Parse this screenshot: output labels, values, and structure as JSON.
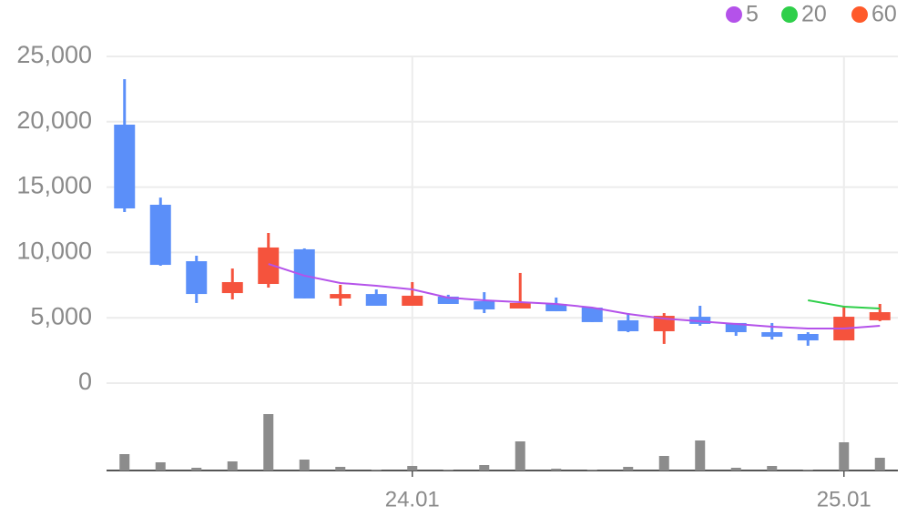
{
  "chart_data": {
    "type": "candlestick",
    "categories": [
      null,
      null,
      null,
      null,
      null,
      null,
      null,
      null,
      "24.01",
      null,
      null,
      null,
      null,
      null,
      null,
      null,
      null,
      null,
      null,
      null,
      "25.01",
      null
    ],
    "open": [
      19780,
      13650,
      9330,
      6890,
      7590,
      10240,
      6480,
      6820,
      5920,
      6620,
      6270,
      5710,
      6060,
      5780,
      4810,
      3970,
      5080,
      4600,
      3900,
      3760,
      3270,
      4810
    ],
    "close": [
      13370,
      9050,
      6820,
      7730,
      10380,
      6480,
      6820,
      5920,
      6690,
      6060,
      5640,
      6130,
      5500,
      4670,
      3970,
      5150,
      4530,
      3900,
      3550,
      3270,
      5080,
      5430
    ],
    "high": [
      23260,
      14200,
      9750,
      8770,
      11490,
      10310,
      7520,
      7170,
      7730,
      6760,
      6960,
      8430,
      6550,
      5780,
      5360,
      5360,
      5920,
      4600,
      4600,
      3900,
      5920,
      6060
    ],
    "low": [
      13090,
      8980,
      6130,
      6410,
      7310,
      6480,
      5920,
      5920,
      5920,
      6060,
      5360,
      5710,
      5500,
      4670,
      3900,
      3000,
      4390,
      3620,
      3340,
      2860,
      3270,
      4740
    ],
    "volume": [
      18,
      9,
      3,
      10,
      62,
      12,
      4,
      1,
      5,
      1,
      6,
      32,
      2,
      1,
      4,
      16,
      33,
      3,
      5,
      1,
      31,
      14
    ],
    "up_color": "#f5533d",
    "down_color": "#5b8ff9",
    "volume_color": "#8c8c8c",
    "series": [
      {
        "name": "5",
        "color": "#b452ea",
        "values": [
          null,
          null,
          null,
          null,
          9120,
          8220,
          7660,
          7450,
          7170,
          6540,
          6340,
          6200,
          6060,
          5780,
          5290,
          4940,
          4730,
          4530,
          4320,
          4180,
          4180,
          4390
        ]
      },
      {
        "name": "20",
        "color": "#2fcf4a",
        "values": [
          null,
          null,
          null,
          null,
          null,
          null,
          null,
          null,
          null,
          null,
          null,
          null,
          null,
          null,
          null,
          null,
          null,
          null,
          null,
          6340,
          5850,
          5710
        ]
      },
      {
        "name": "60",
        "color": "#ff5a2a",
        "values": [
          null,
          null,
          null,
          null,
          null,
          null,
          null,
          null,
          null,
          null,
          null,
          null,
          null,
          null,
          null,
          null,
          null,
          null,
          null,
          null,
          null,
          null
        ]
      }
    ],
    "ylim": [
      0,
      25000
    ],
    "yticks": [
      0,
      {
        "value": 5000,
        "label": "5,000"
      },
      {
        "value": 10000,
        "label": "10,000"
      },
      {
        "value": 15000,
        "label": "15,000"
      },
      {
        "value": 20000,
        "label": "20,000"
      },
      {
        "value": 25000,
        "label": "25,000"
      }
    ],
    "grid": true
  }
}
